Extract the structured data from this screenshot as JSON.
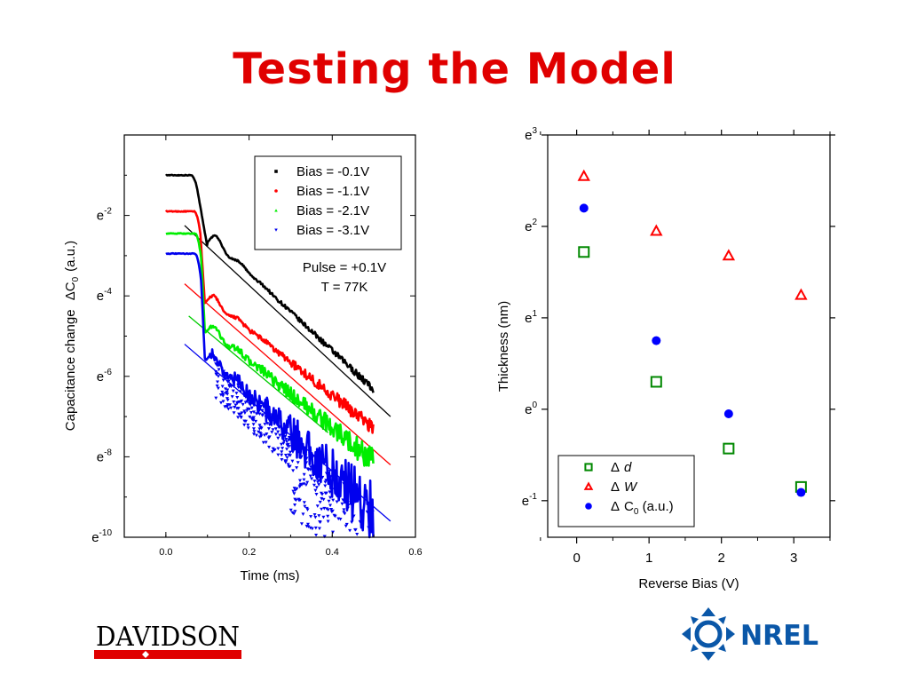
{
  "slide": {
    "title": "Testing the Model"
  },
  "logos": {
    "left": "DAVIDSON",
    "right": "NREL"
  },
  "chart_data": [
    {
      "type": "line",
      "xlabel": "Time (ms)",
      "ylabel_prefix": "Capacitance change",
      "ylabel_symbol": "ΔC",
      "ylabel_sub": "0",
      "ylabel_suffix": "(a.u.)",
      "xlim": [
        -0.1,
        0.6
      ],
      "ylim": [
        -10,
        0
      ],
      "y_scale": "natural-log",
      "x_ticks": [
        "0.0",
        "0.2",
        "0.4",
        "0.6"
      ],
      "y_ticks": [
        {
          "base": "e",
          "exp": "-2",
          "value": -2
        },
        {
          "base": "e",
          "exp": "-4",
          "value": -4
        },
        {
          "base": "e",
          "exp": "-6",
          "value": -6
        },
        {
          "base": "e",
          "exp": "-8",
          "value": -8
        },
        {
          "base": "e",
          "exp": "-10",
          "value": -10
        }
      ],
      "legend_position": "top-right",
      "annotation": [
        "Pulse = +0.1V",
        "T = 77K"
      ],
      "series": [
        {
          "name": "Bias = -0.1V",
          "color": "#000000",
          "marker": "square",
          "plateau": -1.0,
          "drop_start": 0.075,
          "drop_to": -2.8,
          "bump": [
            0.11,
            -2.55
          ],
          "slope": -9.7,
          "fit": [
            [
              0.045,
              -2.25
            ],
            [
              0.54,
              -7.0
            ]
          ],
          "noise": 0.05
        },
        {
          "name": "Bias = -1.1V",
          "color": "#ff0000",
          "marker": "circle",
          "plateau": -1.9,
          "drop_start": 0.083,
          "drop_to": -4.4,
          "bump": [
            0.105,
            -4.05
          ],
          "slope": -8.2,
          "fit": [
            [
              0.045,
              -3.7
            ],
            [
              0.54,
              -8.2
            ]
          ],
          "noise": 0.1
        },
        {
          "name": "Bias = -2.1V",
          "color": "#00ee00",
          "marker": "triangle-up",
          "plateau": -2.45,
          "drop_start": 0.085,
          "drop_to": -5.15,
          "bump": [
            0.105,
            -4.8
          ],
          "slope": -8.4,
          "fit": [
            [
              0.055,
              -4.5
            ],
            [
              0.39,
              -7.4
            ]
          ],
          "noise": 0.17
        },
        {
          "name": "Bias = -3.1V",
          "color": "#0000ee",
          "marker": "triangle-down",
          "plateau": -2.95,
          "drop_start": 0.085,
          "drop_to": -5.85,
          "bump": [
            0.105,
            -5.5
          ],
          "slope": -9.8,
          "fit": [
            [
              0.045,
              -5.2
            ],
            [
              0.54,
              -9.6
            ]
          ],
          "noise": 0.45
        }
      ]
    },
    {
      "type": "scatter",
      "xlabel": "Reverse Bias (V)",
      "ylabel": "Thickness (nm)",
      "xlim": [
        -0.4,
        3.5
      ],
      "ylim": [
        -1.4,
        3.0
      ],
      "y_scale": "natural-log",
      "x_ticks": [
        "0",
        "1",
        "2",
        "3"
      ],
      "y_ticks": [
        {
          "base": "e",
          "exp": "3",
          "value": 3
        },
        {
          "base": "e",
          "exp": "2",
          "value": 2
        },
        {
          "base": "e",
          "exp": "1",
          "value": 1
        },
        {
          "base": "e",
          "exp": "0",
          "value": 0
        },
        {
          "base": "e",
          "exp": "-1",
          "value": -1
        }
      ],
      "legend_position": "bottom-right",
      "series": [
        {
          "name": "Δ d",
          "label_symbol": "Δ",
          "label_text": "d",
          "label_italic": true,
          "color": "#008800",
          "marker": "open-square",
          "x": [
            0.1,
            1.1,
            2.1,
            3.1
          ],
          "y": [
            1.72,
            0.3,
            -0.43,
            -0.85
          ]
        },
        {
          "name": "Δ W",
          "label_symbol": "Δ",
          "label_text": "W",
          "label_italic": true,
          "color": "#ff0000",
          "marker": "open-triangle",
          "x": [
            0.1,
            1.1,
            2.1,
            3.1
          ],
          "y": [
            2.55,
            1.95,
            1.68,
            1.25
          ]
        },
        {
          "name": "Δ C0 (a.u.)",
          "label_symbol": "Δ",
          "label_text": "C",
          "label_sub": "0",
          "label_after": " (a.u.)",
          "color": "#0000ff",
          "marker": "filled-circle",
          "x": [
            0.1,
            1.1,
            2.1,
            3.1
          ],
          "y": [
            2.2,
            0.75,
            -0.05,
            -0.91
          ]
        }
      ]
    }
  ]
}
